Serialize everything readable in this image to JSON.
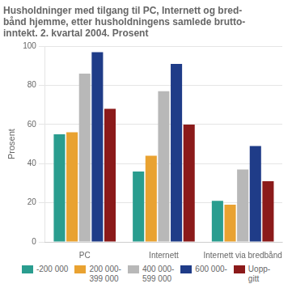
{
  "chart_data": {
    "type": "bar",
    "title": "Husholdninger med tilgang til PC, Internett og bred-\nbånd hjemme, etter husholdningens samlede brutto-\ninntekt. 2. kvartal 2004. Prosent",
    "ylabel": "Prosent",
    "categories": [
      "PC",
      "Internett",
      "Internett via bredbånd"
    ],
    "series": [
      {
        "name": "-200 000",
        "color": "#2a9d8f",
        "values": [
          55,
          36,
          21
        ]
      },
      {
        "name": "200 000-\n399 000",
        "color": "#e9a231",
        "values": [
          56,
          44,
          19
        ]
      },
      {
        "name": "400 000-\n599 000",
        "color": "#b8b8b8",
        "values": [
          86,
          77,
          37
        ]
      },
      {
        "name": "600 000-",
        "color": "#1f3c88",
        "values": [
          97,
          91,
          49
        ]
      },
      {
        "name": "Uopp-\ngitt",
        "color": "#8b1a1a",
        "values": [
          68,
          60,
          31
        ]
      }
    ],
    "ylim": [
      0,
      100
    ],
    "yticks": [
      0,
      20,
      40,
      60,
      80,
      100
    ],
    "grid": true,
    "legend": "bottom"
  }
}
